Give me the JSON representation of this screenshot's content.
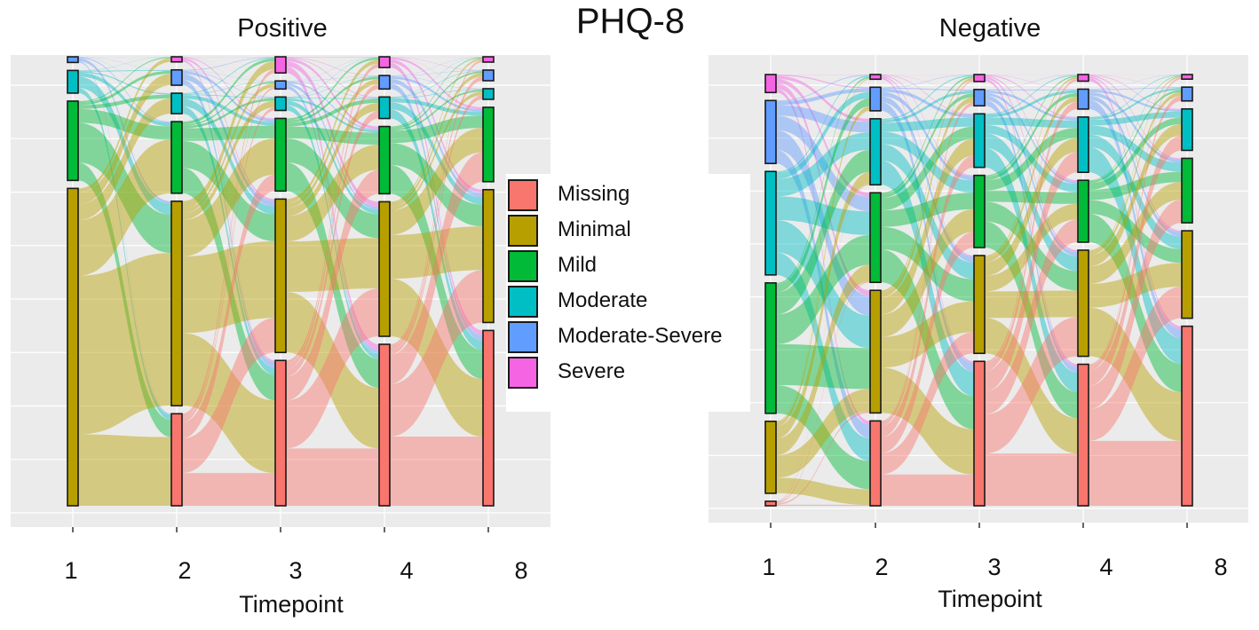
{
  "title": "PHQ-8",
  "legend": {
    "items": [
      {
        "label": "Missing",
        "color": "#F8766D"
      },
      {
        "label": "Minimal",
        "color": "#B79F00"
      },
      {
        "label": "Mild",
        "color": "#00BA38"
      },
      {
        "label": "Moderate",
        "color": "#00BFC4"
      },
      {
        "label": "Moderate-Severe",
        "color": "#619CFF"
      },
      {
        "label": "Severe",
        "color": "#F564E3"
      }
    ]
  },
  "chart_data": [
    {
      "type": "alluvial",
      "title": "Positive",
      "xlabel": "Timepoint",
      "categories": [
        "1",
        "2",
        "3",
        "4",
        "8"
      ],
      "category_order_top_to_bottom": [
        "Severe",
        "Moderate-Severe",
        "Moderate",
        "Mild",
        "Minimal",
        "Missing"
      ],
      "axis_range": [
        0,
        1
      ],
      "grid": true,
      "strata": {
        "1": {
          "Severe": 0,
          "Moderate-Severe": 0.01,
          "Moderate": 0.04,
          "Mild": 0.14,
          "Minimal": 0.56,
          "Missing": 0
        },
        "2": {
          "Severe": 0.01,
          "Moderate-Severe": 0.03,
          "Moderate": 0.04,
          "Mild": 0.14,
          "Minimal": 0.4,
          "Missing": 0.18
        },
        "3": {
          "Severe": 0.03,
          "Moderate-Severe": 0.015,
          "Moderate": 0.025,
          "Mild": 0.135,
          "Minimal": 0.285,
          "Missing": 0.27
        },
        "4": {
          "Severe": 0.02,
          "Moderate-Severe": 0.025,
          "Moderate": 0.04,
          "Mild": 0.125,
          "Minimal": 0.25,
          "Missing": 0.3
        },
        "8": {
          "Severe": 0.01,
          "Moderate-Severe": 0.02,
          "Moderate": 0.02,
          "Mild": 0.14,
          "Minimal": 0.25,
          "Missing": 0.33
        }
      }
    },
    {
      "type": "alluvial",
      "title": "Negative",
      "xlabel": "Timepoint",
      "categories": [
        "1",
        "2",
        "3",
        "4",
        "8"
      ],
      "category_order_top_to_bottom": [
        "Severe",
        "Moderate-Severe",
        "Moderate",
        "Mild",
        "Minimal",
        "Missing"
      ],
      "axis_range": [
        0,
        1
      ],
      "grid": true,
      "strata": {
        "1": {
          "Severe": 0.04,
          "Moderate-Severe": 0.14,
          "Moderate": 0.23,
          "Mild": 0.29,
          "Minimal": 0.16,
          "Missing": 0.01
        },
        "2": {
          "Severe": 0.01,
          "Moderate-Severe": 0.05,
          "Moderate": 0.14,
          "Mild": 0.19,
          "Minimal": 0.26,
          "Missing": 0.18
        },
        "3": {
          "Severe": 0.015,
          "Moderate-Severe": 0.035,
          "Moderate": 0.115,
          "Mild": 0.155,
          "Minimal": 0.21,
          "Missing": 0.31
        },
        "4": {
          "Severe": 0.015,
          "Moderate-Severe": 0.045,
          "Moderate": 0.125,
          "Mild": 0.14,
          "Minimal": 0.24,
          "Missing": 0.32
        },
        "8": {
          "Severe": 0.01,
          "Moderate-Severe": 0.03,
          "Moderate": 0.09,
          "Mild": 0.14,
          "Minimal": 0.19,
          "Missing": 0.39
        }
      }
    }
  ]
}
